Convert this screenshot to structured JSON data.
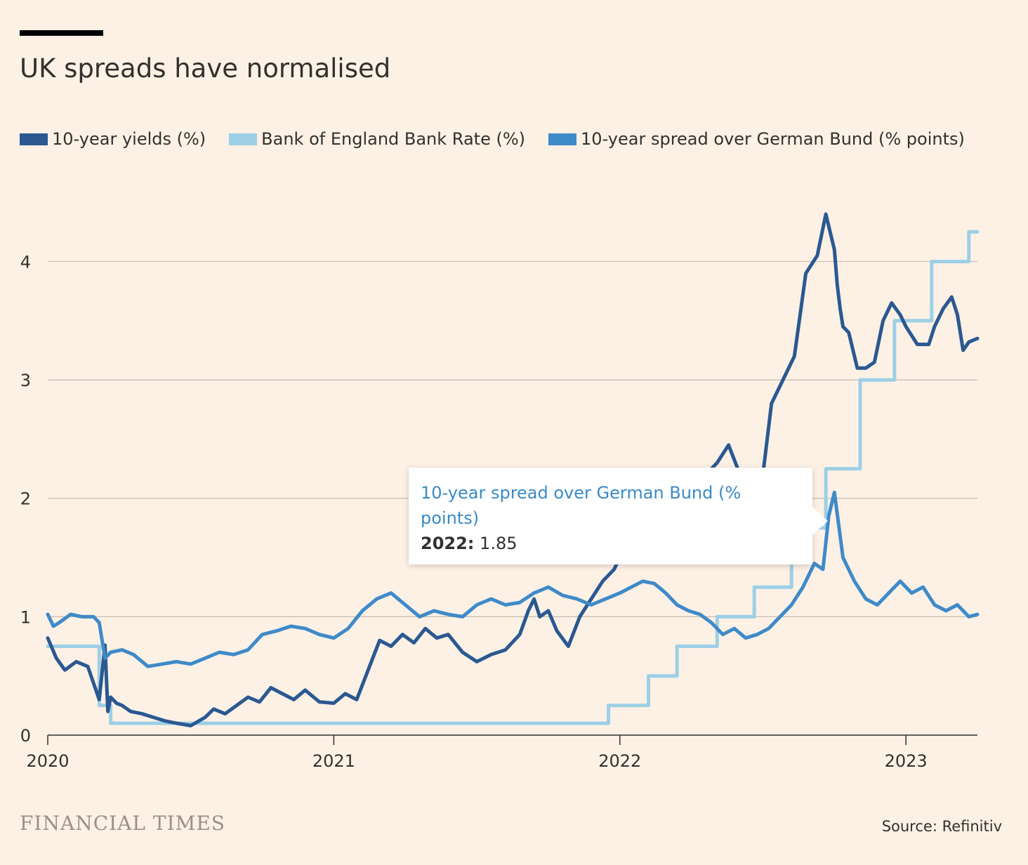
{
  "title": "UK spreads have normalised",
  "brand": "FINANCIAL TIMES",
  "source": "Source: Refinitiv",
  "tooltip": {
    "series_name": "10-year spread over German Bund (% points)",
    "label": "2022:",
    "value": "1.85"
  },
  "colors": {
    "yields": "#2b5891",
    "bank_rate": "#9dcfe6",
    "spread": "#3f8ac9",
    "grid": "#c7bcb3",
    "background": "#fdf1e5"
  },
  "chart_data": {
    "type": "line",
    "title": "UK spreads have normalised",
    "xlabel": "",
    "ylabel": "",
    "xlim": [
      2020.0,
      2023.25
    ],
    "ylim": [
      0,
      4.4
    ],
    "x_ticks": [
      "2020",
      "2021",
      "2022",
      "2023"
    ],
    "y_ticks": [
      "0",
      "1",
      "2",
      "3",
      "4"
    ],
    "grid": true,
    "legend_position": "top-left",
    "series": [
      {
        "name": "10-year yields (%)",
        "color": "#2b5891",
        "x": [
          2020.0,
          2020.03,
          2020.06,
          2020.1,
          2020.14,
          2020.18,
          2020.2,
          2020.21,
          2020.22,
          2020.24,
          2020.26,
          2020.29,
          2020.33,
          2020.37,
          2020.41,
          2020.45,
          2020.5,
          2020.55,
          2020.58,
          2020.62,
          2020.66,
          2020.7,
          2020.74,
          2020.78,
          2020.82,
          2020.86,
          2020.9,
          2020.95,
          2021.0,
          2021.04,
          2021.08,
          2021.12,
          2021.16,
          2021.2,
          2021.24,
          2021.28,
          2021.32,
          2021.36,
          2021.4,
          2021.45,
          2021.5,
          2021.55,
          2021.6,
          2021.65,
          2021.68,
          2021.7,
          2021.72,
          2021.75,
          2021.78,
          2021.82,
          2021.86,
          2021.9,
          2021.94,
          2021.98,
          2022.02,
          2022.06,
          2022.1,
          2022.14,
          2022.18,
          2022.22,
          2022.26,
          2022.3,
          2022.34,
          2022.38,
          2022.42,
          2022.46,
          2022.49,
          2022.53,
          2022.57,
          2022.61,
          2022.65,
          2022.69,
          2022.72,
          2022.75,
          2022.76,
          2022.77,
          2022.78,
          2022.8,
          2022.83,
          2022.86,
          2022.89,
          2022.92,
          2022.95,
          2022.98,
          2023.0,
          2023.04,
          2023.08,
          2023.1,
          2023.13,
          2023.16,
          2023.18,
          2023.2,
          2023.22,
          2023.25
        ],
        "y": [
          0.82,
          0.65,
          0.55,
          0.62,
          0.58,
          0.3,
          0.76,
          0.2,
          0.32,
          0.27,
          0.25,
          0.2,
          0.18,
          0.15,
          0.12,
          0.1,
          0.08,
          0.15,
          0.22,
          0.18,
          0.25,
          0.32,
          0.28,
          0.4,
          0.35,
          0.3,
          0.38,
          0.28,
          0.27,
          0.35,
          0.3,
          0.55,
          0.8,
          0.75,
          0.85,
          0.78,
          0.9,
          0.82,
          0.85,
          0.7,
          0.62,
          0.68,
          0.72,
          0.85,
          1.05,
          1.15,
          1.0,
          1.05,
          0.88,
          0.75,
          1.0,
          1.15,
          1.3,
          1.4,
          1.6,
          1.7,
          1.85,
          1.9,
          2.0,
          2.1,
          2.05,
          2.2,
          2.3,
          2.45,
          2.2,
          2.15,
          2.0,
          2.8,
          3.0,
          3.2,
          3.9,
          4.05,
          4.4,
          4.1,
          3.8,
          3.6,
          3.45,
          3.4,
          3.1,
          3.1,
          3.15,
          3.5,
          3.65,
          3.55,
          3.45,
          3.3,
          3.3,
          3.45,
          3.6,
          3.7,
          3.55,
          3.25,
          3.32,
          3.35
        ]
      },
      {
        "name": "Bank of England Bank Rate (%)",
        "color": "#9dcfe6",
        "x": [
          2020.0,
          2020.18,
          2020.18,
          2020.22,
          2020.22,
          2021.96,
          2021.96,
          2022.1,
          2022.1,
          2022.2,
          2022.2,
          2022.34,
          2022.34,
          2022.47,
          2022.47,
          2022.6,
          2022.6,
          2022.72,
          2022.72,
          2022.84,
          2022.84,
          2022.96,
          2022.96,
          2023.09,
          2023.09,
          2023.22,
          2023.22,
          2023.25
        ],
        "y": [
          0.75,
          0.75,
          0.25,
          0.25,
          0.1,
          0.1,
          0.25,
          0.25,
          0.5,
          0.5,
          0.75,
          0.75,
          1.0,
          1.0,
          1.25,
          1.25,
          1.75,
          1.75,
          2.25,
          2.25,
          3.0,
          3.0,
          3.5,
          3.5,
          4.0,
          4.0,
          4.25,
          4.25
        ]
      },
      {
        "name": "10-year spread over German Bund (% points)",
        "color": "#3f8ac9",
        "x": [
          2020.0,
          2020.02,
          2020.04,
          2020.08,
          2020.12,
          2020.16,
          2020.18,
          2020.2,
          2020.22,
          2020.26,
          2020.3,
          2020.35,
          2020.4,
          2020.45,
          2020.5,
          2020.55,
          2020.6,
          2020.65,
          2020.7,
          2020.75,
          2020.8,
          2020.85,
          2020.9,
          2020.95,
          2021.0,
          2021.05,
          2021.1,
          2021.15,
          2021.2,
          2021.25,
          2021.3,
          2021.35,
          2021.4,
          2021.45,
          2021.5,
          2021.55,
          2021.6,
          2021.65,
          2021.7,
          2021.75,
          2021.8,
          2021.85,
          2021.9,
          2021.95,
          2022.0,
          2022.04,
          2022.08,
          2022.12,
          2022.16,
          2022.2,
          2022.24,
          2022.28,
          2022.32,
          2022.36,
          2022.4,
          2022.44,
          2022.48,
          2022.52,
          2022.56,
          2022.6,
          2022.64,
          2022.68,
          2022.71,
          2022.73,
          2022.75,
          2022.78,
          2022.82,
          2022.86,
          2022.9,
          2022.94,
          2022.98,
          2023.02,
          2023.06,
          2023.1,
          2023.14,
          2023.18,
          2023.2,
          2023.22,
          2023.25
        ],
        "y": [
          1.02,
          0.92,
          0.95,
          1.02,
          1.0,
          1.0,
          0.95,
          0.65,
          0.7,
          0.72,
          0.68,
          0.58,
          0.6,
          0.62,
          0.6,
          0.65,
          0.7,
          0.68,
          0.72,
          0.85,
          0.88,
          0.92,
          0.9,
          0.85,
          0.82,
          0.9,
          1.05,
          1.15,
          1.2,
          1.1,
          1.0,
          1.05,
          1.02,
          1.0,
          1.1,
          1.15,
          1.1,
          1.12,
          1.2,
          1.25,
          1.18,
          1.15,
          1.1,
          1.15,
          1.2,
          1.25,
          1.3,
          1.28,
          1.2,
          1.1,
          1.05,
          1.02,
          0.95,
          0.85,
          0.9,
          0.82,
          0.85,
          0.9,
          1.0,
          1.1,
          1.25,
          1.45,
          1.4,
          1.85,
          2.05,
          1.5,
          1.3,
          1.15,
          1.1,
          1.2,
          1.3,
          1.2,
          1.25,
          1.1,
          1.05,
          1.1,
          1.05,
          1.0,
          1.02
        ]
      }
    ]
  }
}
